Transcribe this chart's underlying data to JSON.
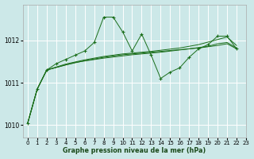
{
  "background_color": "#cce8e8",
  "grid_color": "#ffffff",
  "line_color": "#1a6e1a",
  "title": "Graphe pression niveau de la mer (hPa)",
  "xlim": [
    -0.5,
    23
  ],
  "ylim": [
    1009.7,
    1012.85
  ],
  "yticks": [
    1010,
    1011,
    1012
  ],
  "xticks": [
    0,
    1,
    2,
    3,
    4,
    5,
    6,
    7,
    8,
    9,
    10,
    11,
    12,
    13,
    14,
    15,
    16,
    17,
    18,
    19,
    20,
    21,
    22,
    23
  ],
  "series": {
    "main": [
      [
        0,
        1010.05
      ],
      [
        1,
        1010.85
      ],
      [
        2,
        1011.3
      ],
      [
        3,
        1011.45
      ],
      [
        4,
        1011.55
      ],
      [
        5,
        1011.65
      ],
      [
        6,
        1011.75
      ],
      [
        7,
        1011.95
      ],
      [
        8,
        1012.55
      ],
      [
        9,
        1012.55
      ],
      [
        10,
        1012.2
      ],
      [
        11,
        1011.75
      ],
      [
        12,
        1012.15
      ],
      [
        13,
        1011.65
      ],
      [
        14,
        1011.1
      ],
      [
        15,
        1011.25
      ],
      [
        16,
        1011.35
      ],
      [
        17,
        1011.6
      ],
      [
        18,
        1011.8
      ],
      [
        19,
        1011.9
      ],
      [
        20,
        1012.1
      ],
      [
        21,
        1012.1
      ],
      [
        22,
        1011.8
      ]
    ],
    "smooth1": [
      [
        0,
        1010.05
      ],
      [
        1,
        1010.85
      ],
      [
        2,
        1011.3
      ],
      [
        4,
        1011.42
      ],
      [
        6,
        1011.52
      ],
      [
        8,
        1011.6
      ],
      [
        10,
        1011.66
      ],
      [
        12,
        1011.7
      ],
      [
        14,
        1011.74
      ],
      [
        16,
        1011.78
      ],
      [
        18,
        1011.82
      ],
      [
        20,
        1011.88
      ],
      [
        21,
        1011.92
      ],
      [
        22,
        1011.8
      ]
    ],
    "smooth2": [
      [
        0,
        1010.05
      ],
      [
        1,
        1010.85
      ],
      [
        2,
        1011.3
      ],
      [
        4,
        1011.44
      ],
      [
        6,
        1011.54
      ],
      [
        8,
        1011.62
      ],
      [
        10,
        1011.68
      ],
      [
        13,
        1011.74
      ],
      [
        16,
        1011.82
      ],
      [
        18,
        1011.9
      ],
      [
        20,
        1012.02
      ],
      [
        21,
        1012.08
      ],
      [
        22,
        1011.88
      ]
    ],
    "smooth3": [
      [
        0,
        1010.05
      ],
      [
        1,
        1010.85
      ],
      [
        2,
        1011.3
      ],
      [
        5,
        1011.48
      ],
      [
        8,
        1011.58
      ],
      [
        11,
        1011.66
      ],
      [
        14,
        1011.72
      ],
      [
        17,
        1011.8
      ],
      [
        19,
        1011.86
      ],
      [
        20,
        1011.92
      ],
      [
        21,
        1011.95
      ],
      [
        22,
        1011.82
      ]
    ]
  }
}
